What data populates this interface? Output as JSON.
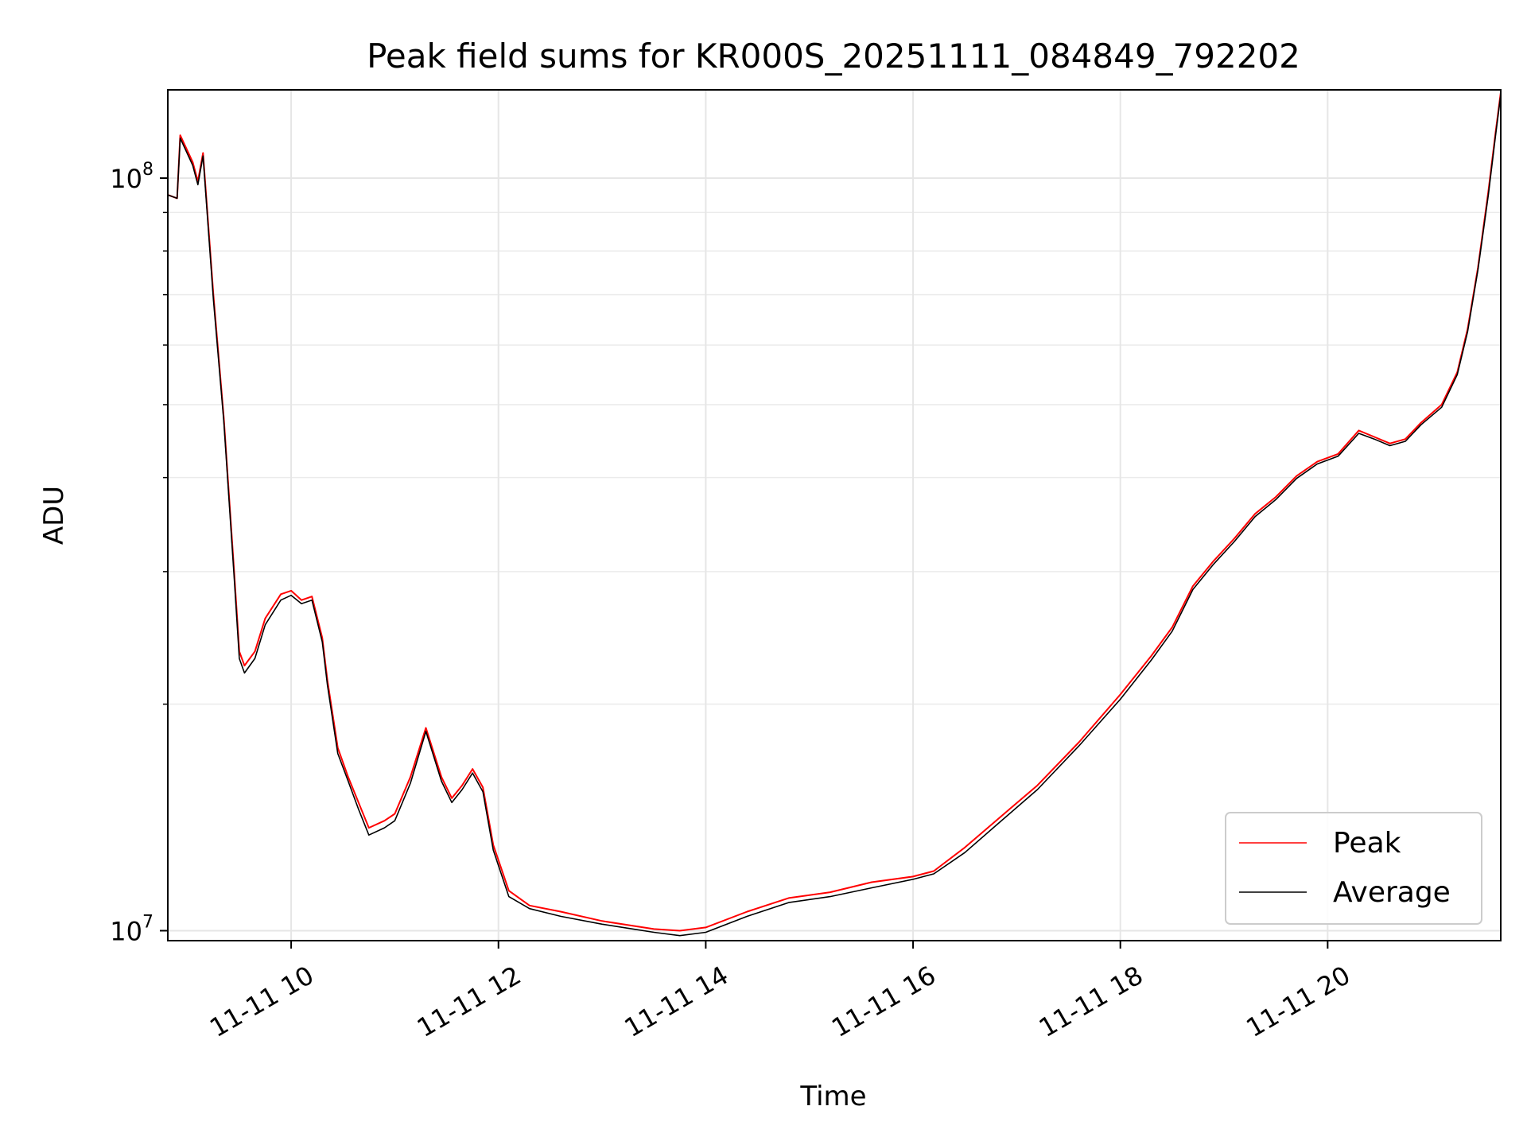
{
  "chart_data": {
    "type": "line",
    "title": "Peak field sums for KR000S_20251111_084849_792202",
    "xlabel": "Time",
    "ylabel": "ADU",
    "yscale": "log",
    "grid": true,
    "legend_position": "lower right",
    "xlim": [
      8.81,
      21.67
    ],
    "ylim": [
      9700000.0,
      131000000.0
    ],
    "x_ticks": [
      {
        "value": 10,
        "label": "11-11 10"
      },
      {
        "value": 12,
        "label": "11-11 12"
      },
      {
        "value": 14,
        "label": "11-11 14"
      },
      {
        "value": 16,
        "label": "11-11 16"
      },
      {
        "value": 18,
        "label": "11-11 18"
      },
      {
        "value": 20,
        "label": "11-11 20"
      }
    ],
    "y_major_ticks": [
      {
        "value": 10000000,
        "base": "10",
        "exp": "7"
      },
      {
        "value": 100000000,
        "base": "10",
        "exp": "8"
      }
    ],
    "y_minor_ticks": [
      20000000,
      30000000,
      40000000,
      50000000,
      60000000,
      70000000,
      80000000,
      90000000
    ],
    "x_units": "hours of 2025-11-11",
    "series": [
      {
        "name": "Peak",
        "color": "#ff0000",
        "x": [
          8.81,
          8.9,
          8.93,
          9.05,
          9.1,
          9.15,
          9.25,
          9.35,
          9.45,
          9.5,
          9.55,
          9.65,
          9.75,
          9.9,
          10.0,
          10.1,
          10.2,
          10.3,
          10.35,
          10.45,
          10.55,
          10.65,
          10.75,
          10.9,
          11.0,
          11.15,
          11.3,
          11.45,
          11.55,
          11.65,
          11.75,
          11.85,
          11.95,
          12.1,
          12.3,
          12.6,
          13.0,
          13.3,
          13.5,
          13.75,
          14.0,
          14.4,
          14.8,
          15.2,
          15.6,
          16.0,
          16.2,
          16.5,
          16.8,
          17.2,
          17.6,
          18.0,
          18.3,
          18.5,
          18.7,
          18.9,
          19.1,
          19.3,
          19.5,
          19.7,
          19.9,
          20.1,
          20.3,
          20.45,
          20.6,
          20.75,
          20.9,
          21.1,
          21.25,
          21.35,
          21.45,
          21.55,
          21.62,
          21.67
        ],
        "y": [
          95000000,
          94000000,
          114000000,
          105000000,
          99000000,
          108000000,
          70000000,
          48000000,
          30000000,
          23500000,
          22500000,
          23500000,
          26000000,
          28000000,
          28300000,
          27500000,
          27800000,
          24500000,
          21500000,
          17500000,
          16000000,
          14800000,
          13700000,
          14000000,
          14300000,
          16000000,
          18600000,
          16000000,
          15000000,
          15600000,
          16400000,
          15500000,
          13000000,
          11300000,
          10800000,
          10600000,
          10300000,
          10150000,
          10050000,
          10000000,
          10100000,
          10600000,
          11050000,
          11250000,
          11600000,
          11800000,
          12000000,
          12900000,
          14000000,
          15600000,
          17800000,
          20600000,
          23200000,
          25300000,
          28700000,
          31000000,
          33200000,
          35800000,
          37700000,
          40200000,
          42000000,
          43000000,
          46200000,
          45300000,
          44400000,
          45000000,
          47300000,
          50000000,
          55200000,
          63000000,
          76000000,
          96000000,
          115000000,
          130000000
        ]
      },
      {
        "name": "Average",
        "color": "#000000",
        "x": [
          8.81,
          8.9,
          8.93,
          9.05,
          9.1,
          9.15,
          9.25,
          9.35,
          9.45,
          9.5,
          9.55,
          9.65,
          9.75,
          9.9,
          10.0,
          10.1,
          10.2,
          10.3,
          10.35,
          10.45,
          10.55,
          10.65,
          10.75,
          10.9,
          11.0,
          11.15,
          11.3,
          11.45,
          11.55,
          11.65,
          11.75,
          11.85,
          11.95,
          12.1,
          12.3,
          12.6,
          13.0,
          13.3,
          13.5,
          13.75,
          14.0,
          14.4,
          14.8,
          15.2,
          15.6,
          16.0,
          16.2,
          16.5,
          16.8,
          17.2,
          17.6,
          18.0,
          18.3,
          18.5,
          18.7,
          18.9,
          19.1,
          19.3,
          19.5,
          19.7,
          19.9,
          20.1,
          20.3,
          20.45,
          20.6,
          20.75,
          20.9,
          21.1,
          21.25,
          21.35,
          21.45,
          21.55,
          21.62,
          21.67
        ],
        "y": [
          95000000,
          94000000,
          113000000,
          104000000,
          98000000,
          107000000,
          69000000,
          47500000,
          29500000,
          23000000,
          22000000,
          23000000,
          25500000,
          27500000,
          27900000,
          27200000,
          27500000,
          24200000,
          21200000,
          17200000,
          15800000,
          14500000,
          13400000,
          13700000,
          14000000,
          15700000,
          18400000,
          15800000,
          14800000,
          15400000,
          16200000,
          15300000,
          12800000,
          11100000,
          10700000,
          10450000,
          10200000,
          10050000,
          9950000,
          9850000,
          9950000,
          10450000,
          10900000,
          11100000,
          11400000,
          11700000,
          11900000,
          12700000,
          13800000,
          15400000,
          17600000,
          20300000,
          22900000,
          25000000,
          28400000,
          30700000,
          32900000,
          35500000,
          37400000,
          39900000,
          41700000,
          42700000,
          45800000,
          45000000,
          44100000,
          44700000,
          47000000,
          49600000,
          54800000,
          62500000,
          75500000,
          95000000,
          114000000,
          129000000
        ]
      }
    ]
  }
}
